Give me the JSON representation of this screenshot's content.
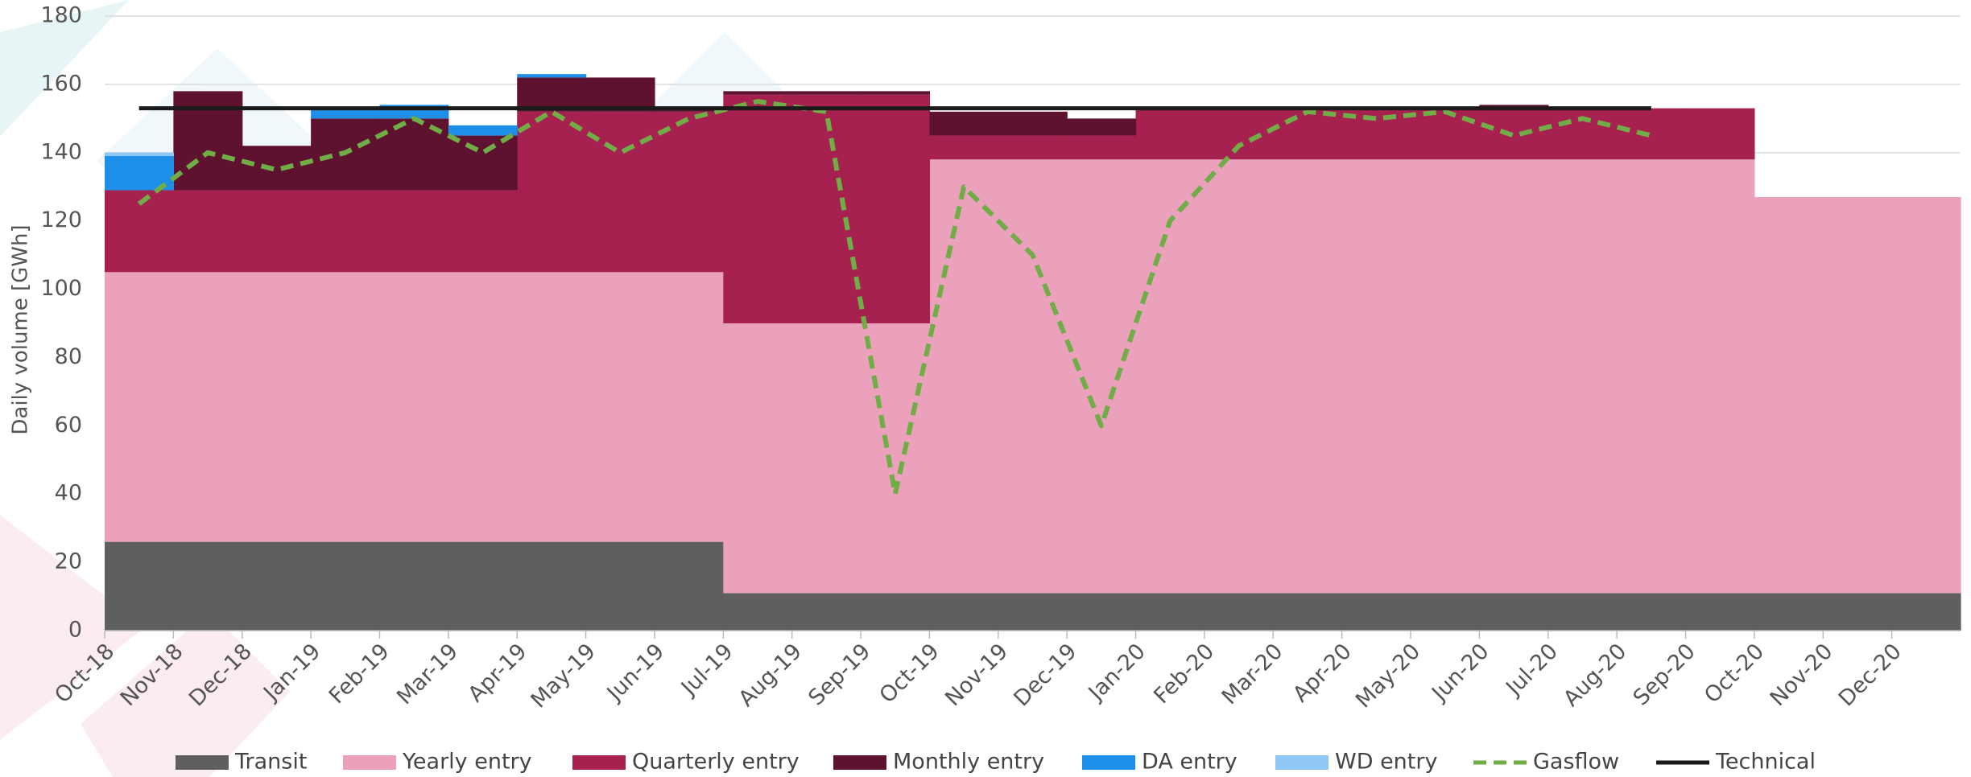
{
  "chart_data": {
    "type": "stacked_area",
    "ylabel": "Daily volume [GWh]",
    "categories": [
      "Oct-18",
      "Nov-18",
      "Dec-18",
      "Jan-19",
      "Feb-19",
      "Mar-19",
      "Apr-19",
      "May-19",
      "Jun-19",
      "Jul-19",
      "Aug-19",
      "Sep-19",
      "Oct-19",
      "Nov-19",
      "Dec-19",
      "Jan-20",
      "Feb-20",
      "Mar-20",
      "Apr-20",
      "May-20",
      "Jun-20",
      "Jul-20",
      "Aug-20",
      "Sep-20",
      "Oct-20",
      "Nov-20",
      "Dec-20"
    ],
    "ylim": [
      0,
      180
    ],
    "yticks": [
      0,
      20,
      40,
      60,
      80,
      100,
      120,
      140,
      160,
      180
    ],
    "series": [
      {
        "name": "Transit",
        "type": "area",
        "color": "#5f5f5f",
        "values": [
          26,
          26,
          26,
          26,
          26,
          26,
          26,
          26,
          26,
          11,
          11,
          11,
          11,
          11,
          11,
          11,
          11,
          11,
          11,
          11,
          11,
          11,
          11,
          11,
          11,
          11,
          11
        ]
      },
      {
        "name": "Yearly entry",
        "type": "area",
        "color": "#eba1bb",
        "values": [
          79,
          79,
          79,
          79,
          79,
          79,
          79,
          79,
          79,
          79,
          79,
          79,
          127,
          127,
          127,
          127,
          127,
          127,
          127,
          127,
          127,
          127,
          127,
          127,
          116,
          116,
          116
        ]
      },
      {
        "name": "Quarterly entry",
        "type": "area",
        "color": "#a6214f",
        "values": [
          24,
          24,
          24,
          24,
          24,
          24,
          47,
          47,
          47,
          67,
          67,
          67,
          7,
          7,
          7,
          15,
          15,
          15,
          15,
          15,
          15,
          15,
          15,
          15,
          0,
          0,
          0
        ]
      },
      {
        "name": "Monthly entry",
        "type": "area",
        "color": "#5e1230",
        "values": [
          0,
          29,
          13,
          21,
          21,
          16,
          10,
          10,
          1,
          1,
          1,
          1,
          7,
          7,
          5,
          0,
          0,
          0,
          0,
          0,
          1,
          0,
          0,
          0,
          0,
          0,
          0
        ]
      },
      {
        "name": "DA entry",
        "type": "area",
        "color": "#1e8fe8",
        "values": [
          10,
          0,
          0,
          3,
          4,
          3,
          1,
          0,
          0,
          0,
          0,
          0,
          0,
          0,
          0,
          0,
          0,
          0,
          0,
          0,
          0,
          0,
          0,
          0,
          0,
          0,
          0
        ]
      },
      {
        "name": "WD entry",
        "type": "area",
        "color": "#90c8f5",
        "values": [
          1,
          0,
          0,
          0,
          0,
          0,
          0,
          0,
          0,
          0,
          0,
          0,
          0,
          0,
          0,
          0,
          0,
          0,
          0,
          0,
          0,
          0,
          0,
          0,
          0,
          0,
          0
        ]
      },
      {
        "name": "Gasflow",
        "type": "line",
        "dashed": true,
        "color": "#70ad47",
        "values": [
          125,
          140,
          135,
          140,
          150,
          140,
          152,
          140,
          150,
          155,
          152,
          40,
          130,
          110,
          60,
          120,
          142,
          152,
          150,
          152,
          145,
          150,
          145,
          null,
          null,
          null,
          null
        ]
      },
      {
        "name": "Technical",
        "type": "line",
        "dashed": false,
        "color": "#1a1a1a",
        "values": [
          153,
          153,
          153,
          153,
          153,
          153,
          153,
          153,
          153,
          153,
          153,
          153,
          153,
          153,
          153,
          153,
          153,
          153,
          153,
          153,
          153,
          153,
          153,
          null,
          null,
          null,
          null
        ]
      }
    ]
  }
}
